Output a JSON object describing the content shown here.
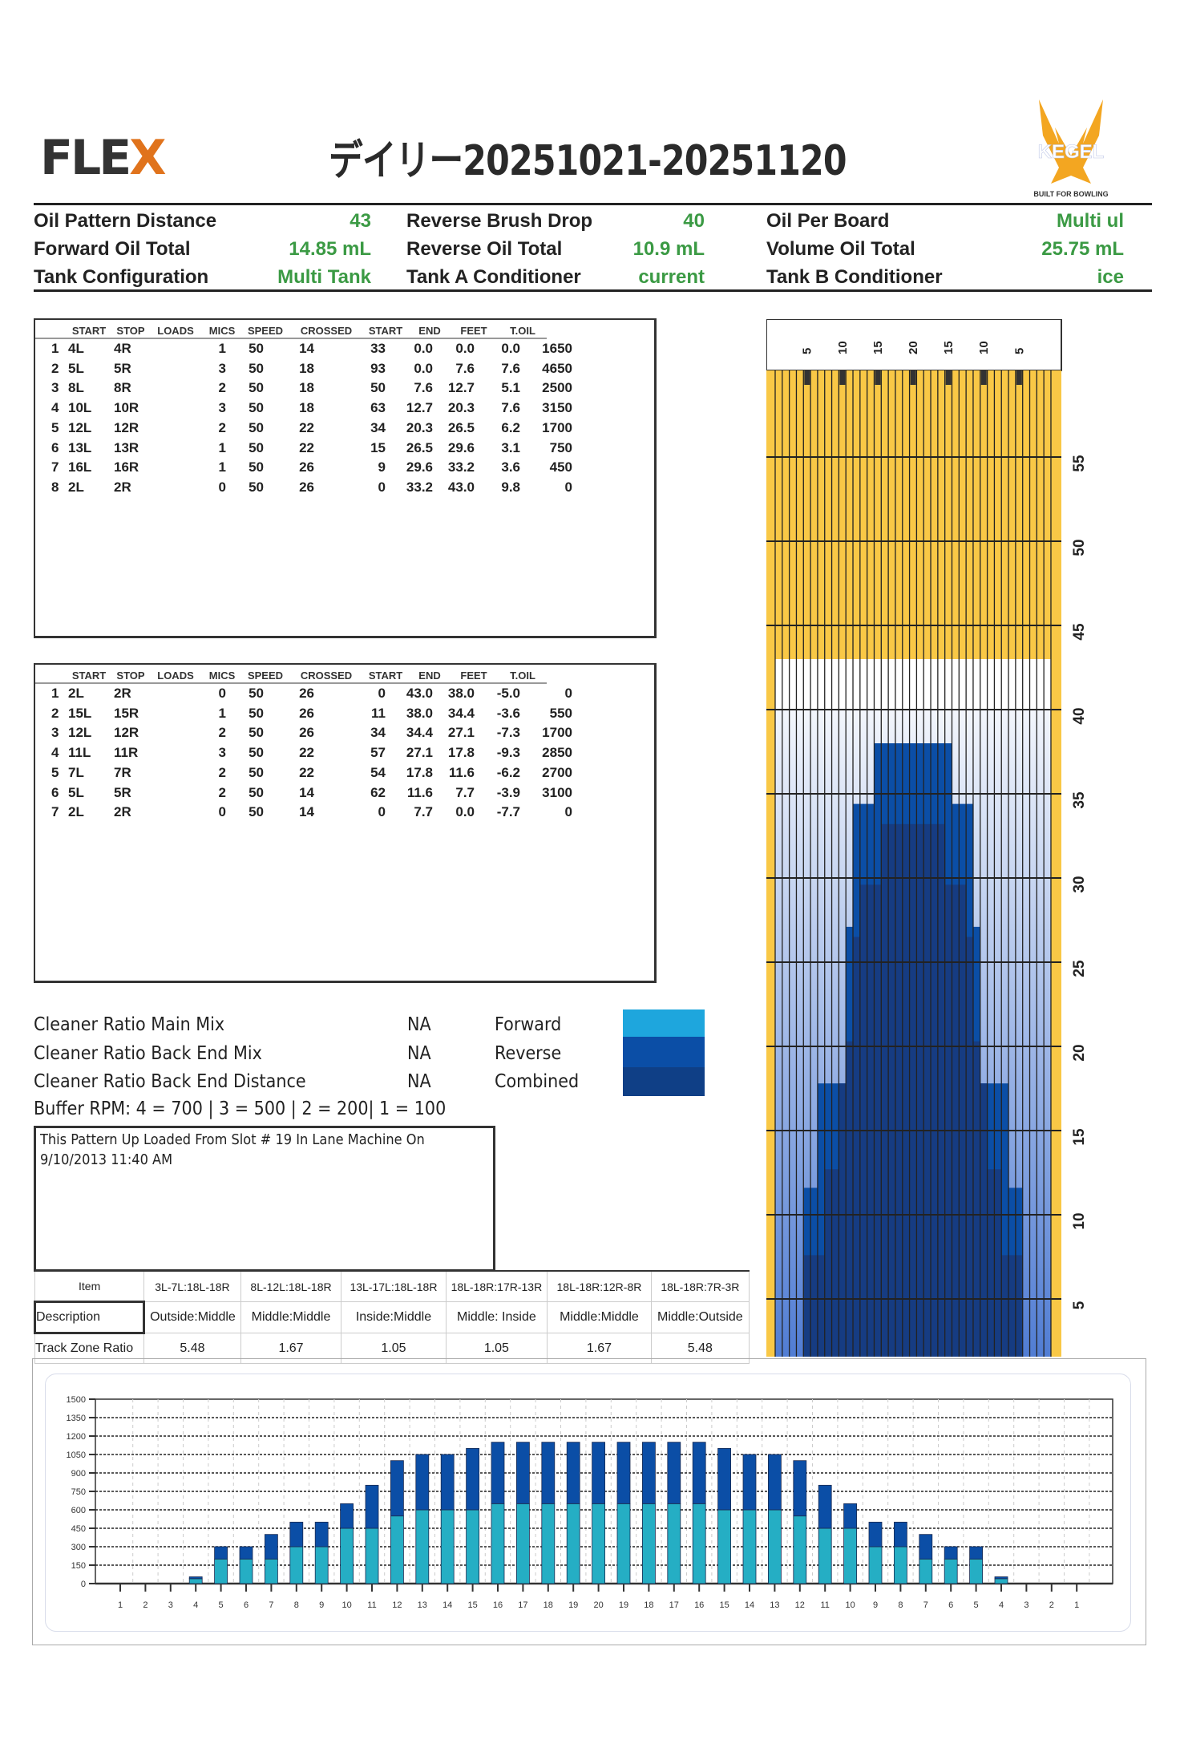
{
  "header": {
    "logo_left": "FLEX",
    "title": "デイリー20251021-20251120",
    "logo_right": "KEGEL",
    "logo_right_tagline": "BUILT FOR BOWLING"
  },
  "info": [
    [
      {
        "label": "Oil Pattern Distance",
        "value": "43"
      },
      {
        "label": "Reverse Brush Drop",
        "value": "40"
      },
      {
        "label": "Oil Per Board",
        "value": "Multi ul"
      }
    ],
    [
      {
        "label": "Forward Oil Total",
        "value": "14.85 mL"
      },
      {
        "label": "Reverse Oil Total",
        "value": "10.9 mL"
      },
      {
        "label": "Volume Oil Total",
        "value": "25.75 mL"
      }
    ],
    [
      {
        "label": "Tank Configuration",
        "value": "Multi Tank"
      },
      {
        "label": "Tank A Conditioner",
        "value": "current"
      },
      {
        "label": "Tank B Conditioner",
        "value": "ice"
      }
    ]
  ],
  "columns": [
    "START",
    "STOP",
    "LOADS",
    "MICS",
    "SPEED",
    "CROSSED",
    "START",
    "END",
    "FEET",
    "T.OIL"
  ],
  "forward_table": [
    [
      "1",
      "4L",
      "4R",
      "1",
      "50",
      "14",
      "33",
      "0.0",
      "0.0",
      "0.0",
      "1650"
    ],
    [
      "2",
      "5L",
      "5R",
      "3",
      "50",
      "18",
      "93",
      "0.0",
      "7.6",
      "7.6",
      "4650"
    ],
    [
      "3",
      "8L",
      "8R",
      "2",
      "50",
      "18",
      "50",
      "7.6",
      "12.7",
      "5.1",
      "2500"
    ],
    [
      "4",
      "10L",
      "10R",
      "3",
      "50",
      "18",
      "63",
      "12.7",
      "20.3",
      "7.6",
      "3150"
    ],
    [
      "5",
      "12L",
      "12R",
      "2",
      "50",
      "22",
      "34",
      "20.3",
      "26.5",
      "6.2",
      "1700"
    ],
    [
      "6",
      "13L",
      "13R",
      "1",
      "50",
      "22",
      "15",
      "26.5",
      "29.6",
      "3.1",
      "750"
    ],
    [
      "7",
      "16L",
      "16R",
      "1",
      "50",
      "26",
      "9",
      "29.6",
      "33.2",
      "3.6",
      "450"
    ],
    [
      "8",
      "2L",
      "2R",
      "0",
      "50",
      "26",
      "0",
      "33.2",
      "43.0",
      "9.8",
      "0"
    ]
  ],
  "reverse_table": [
    [
      "1",
      "2L",
      "2R",
      "0",
      "50",
      "26",
      "0",
      "43.0",
      "38.0",
      "-5.0",
      "0"
    ],
    [
      "2",
      "15L",
      "15R",
      "1",
      "50",
      "26",
      "11",
      "38.0",
      "34.4",
      "-3.6",
      "550"
    ],
    [
      "3",
      "12L",
      "12R",
      "2",
      "50",
      "26",
      "34",
      "34.4",
      "27.1",
      "-7.3",
      "1700"
    ],
    [
      "4",
      "11L",
      "11R",
      "3",
      "50",
      "22",
      "57",
      "27.1",
      "17.8",
      "-9.3",
      "2850"
    ],
    [
      "5",
      "7L",
      "7R",
      "2",
      "50",
      "22",
      "54",
      "17.8",
      "11.6",
      "-6.2",
      "2700"
    ],
    [
      "6",
      "5L",
      "5R",
      "2",
      "50",
      "14",
      "62",
      "11.6",
      "7.7",
      "-3.9",
      "3100"
    ],
    [
      "7",
      "2L",
      "2R",
      "0",
      "50",
      "14",
      "0",
      "7.7",
      "0.0",
      "-7.7",
      "0"
    ]
  ],
  "cleaner": [
    {
      "label": "Cleaner Ratio Main Mix",
      "value": "NA",
      "legend": "Forward"
    },
    {
      "label": "Cleaner Ratio Back End Mix",
      "value": "NA",
      "legend": "Reverse"
    },
    {
      "label": "Cleaner Ratio Back End Distance",
      "value": "NA",
      "legend": "Combined"
    }
  ],
  "legend_colors": {
    "forward": "#1ea6dd",
    "reverse": "#0b4ea6",
    "combined": "#0f3f86"
  },
  "buffer_rpm": "Buffer RPM: 4 = 700 | 3 = 500 | 2 = 200| 1 = 100",
  "notes": [
    "This Pattern Up Loaded From Slot # 19 In Lane Machine On",
    "9/10/2013 11:40 AM"
  ],
  "zone_table": {
    "header": [
      "Item",
      "3L-7L:18L-18R",
      "8L-12L:18L-18R",
      "13L-17L:18L-18R",
      "18L-18R:17R-13R",
      "18L-18R:12R-8R",
      "18L-18R:7R-3R"
    ],
    "description": [
      "Description",
      "Outside:Middle",
      "Middle:Middle",
      "Inside:Middle",
      "Middle: Inside",
      "Middle:Middle",
      "Middle:Outside"
    ],
    "ratio": [
      "Track Zone Ratio",
      "5.48",
      "1.67",
      "1.05",
      "1.05",
      "1.67",
      "5.48"
    ]
  },
  "lane_graphic": {
    "board_labels": [
      "5",
      "10",
      "15",
      "20",
      "15",
      "10",
      "5"
    ],
    "feet_ticks": [
      "55",
      "50",
      "45",
      "40",
      "35",
      "30",
      "25",
      "20",
      "15",
      "10",
      "5"
    ],
    "colors": {
      "lane": "#f9c846",
      "dry": "#ffffff",
      "light_oil": "#4a78d2",
      "reverse": "#0b4ea6",
      "combined": "#163c82"
    }
  },
  "chart_data": {
    "type": "bar",
    "stacked": true,
    "categories": [
      "1",
      "2",
      "3",
      "4",
      "5",
      "6",
      "7",
      "8",
      "9",
      "10",
      "11",
      "12",
      "13",
      "14",
      "15",
      "16",
      "17",
      "18",
      "19",
      "20",
      "19",
      "18",
      "17",
      "16",
      "15",
      "14",
      "13",
      "12",
      "11",
      "10",
      "9",
      "8",
      "7",
      "6",
      "5",
      "4",
      "3",
      "2",
      "1"
    ],
    "series": [
      {
        "color": "#25aec4",
        "values": [
          0,
          0,
          0,
          40,
          200,
          200,
          200,
          300,
          300,
          450,
          450,
          550,
          600,
          600,
          600,
          650,
          650,
          650,
          650,
          650,
          650,
          650,
          650,
          650,
          600,
          600,
          600,
          550,
          450,
          450,
          300,
          300,
          200,
          200,
          200,
          40,
          0,
          0,
          0
        ]
      },
      {
        "color": "#0b4ea6",
        "values": [
          0,
          0,
          0,
          15,
          100,
          100,
          200,
          200,
          200,
          200,
          350,
          450,
          450,
          450,
          500,
          500,
          500,
          500,
          500,
          500,
          500,
          500,
          500,
          500,
          500,
          450,
          450,
          450,
          350,
          200,
          200,
          200,
          200,
          100,
          100,
          15,
          0,
          0,
          0
        ]
      }
    ],
    "yticks": [
      "0",
      "150",
      "300",
      "450",
      "600",
      "750",
      "900",
      "1050",
      "1200",
      "1350",
      "1500"
    ],
    "ylim": [
      0,
      1500
    ],
    "grid": true
  }
}
